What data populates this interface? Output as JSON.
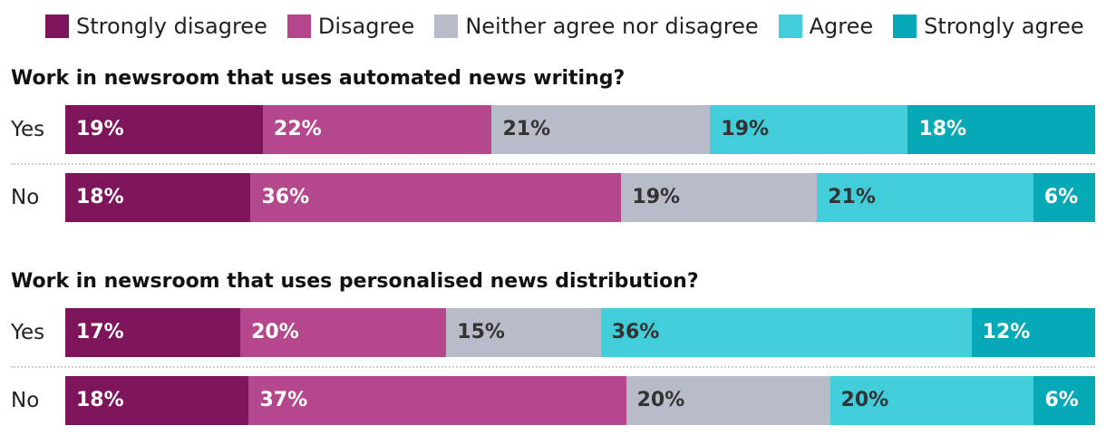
{
  "chart_data": {
    "type": "bar",
    "orientation": "horizontal-stacked-100",
    "legend": {
      "placement": "top",
      "entries": [
        {
          "name": "Strongly disagree",
          "color": "#7e1459"
        },
        {
          "name": "Disagree",
          "color": "#b5488c"
        },
        {
          "name": "Neither agree nor disagree",
          "color": "#b8bcc8"
        },
        {
          "name": "Agree",
          "color": "#41cdda"
        },
        {
          "name": "Strongly agree",
          "color": "#06a9b6"
        }
      ]
    },
    "label_colors": [
      "#ffffff",
      "#ffffff",
      "#333333",
      "#333333",
      "#ffffff"
    ],
    "groups": [
      {
        "title": "Work in newsroom that uses automated news writing?",
        "rows": [
          {
            "label": "Yes",
            "values": [
              19,
              22,
              21,
              19,
              18
            ],
            "value_labels": [
              "19%",
              "22%",
              "21%",
              "19%",
              "18%"
            ]
          },
          {
            "label": "No",
            "values": [
              18,
              36,
              19,
              21,
              6
            ],
            "value_labels": [
              "18%",
              "36%",
              "19%",
              "21%",
              "6%"
            ]
          }
        ]
      },
      {
        "title": "Work in newsroom that uses personalised news distribution?",
        "rows": [
          {
            "label": "Yes",
            "values": [
              17,
              20,
              15,
              36,
              12
            ],
            "value_labels": [
              "17%",
              "20%",
              "15%",
              "36%",
              "12%"
            ]
          },
          {
            "label": "No",
            "values": [
              18,
              37,
              20,
              20,
              6
            ],
            "value_labels": [
              "18%",
              "37%",
              "20%",
              "20%",
              "6%"
            ]
          }
        ]
      }
    ]
  }
}
